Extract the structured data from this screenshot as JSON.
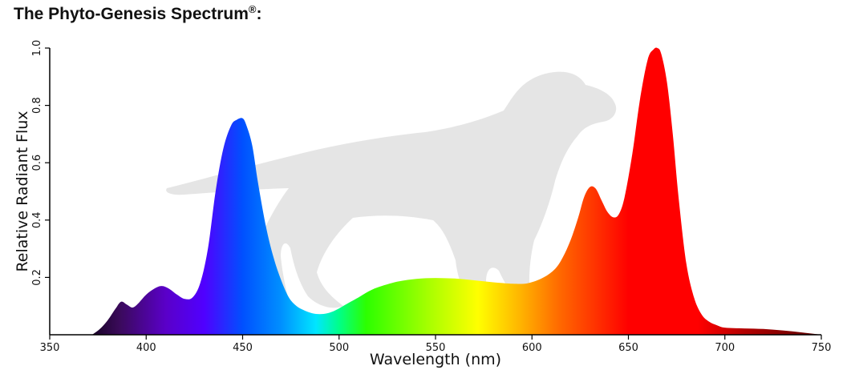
{
  "header": {
    "title": "The Phyto-Genesis Spectrum",
    "trademark": "®",
    "suffix": ":"
  },
  "chart_data": {
    "type": "area",
    "title": "The Phyto-Genesis Spectrum®:",
    "xlabel": "Wavelength (nm)",
    "ylabel": "Relative Radiant Flux",
    "xlim": [
      350,
      750
    ],
    "ylim": [
      0,
      1.0
    ],
    "x_ticks": [
      350,
      400,
      450,
      500,
      550,
      600,
      650,
      700,
      750
    ],
    "x_tick_labels": [
      "350",
      "400",
      "450",
      "500",
      "550",
      "600",
      "650",
      "700",
      "750"
    ],
    "y_ticks": [
      0.2,
      0.4,
      0.6,
      0.8,
      1.0
    ],
    "y_tick_labels": [
      "0.2",
      "0.4",
      "0.6",
      "0.8",
      "1.0"
    ],
    "grid": false,
    "fill": "wavelength-colored gradient",
    "series": [
      {
        "x": [
          372,
          376,
          380,
          384,
          387,
          390,
          393,
          396,
          400,
          404,
          408,
          412,
          416,
          420,
          424,
          428,
          432,
          436,
          440,
          444,
          447,
          450,
          452,
          455,
          458,
          462,
          466,
          470,
          474,
          478,
          482,
          486,
          490,
          494,
          498,
          502,
          506,
          510,
          515,
          520,
          530,
          540,
          550,
          560,
          570,
          580,
          590,
          598,
          606,
          612,
          616,
          620,
          624,
          627,
          630,
          633,
          636,
          639,
          642,
          645,
          648,
          652,
          656,
          660,
          663,
          665,
          667,
          670,
          673,
          676,
          680,
          684,
          688,
          692,
          696,
          700,
          710,
          720,
          730,
          740,
          750
        ],
        "y": [
          0.0,
          0.02,
          0.05,
          0.09,
          0.115,
          0.105,
          0.095,
          0.11,
          0.14,
          0.16,
          0.17,
          0.16,
          0.14,
          0.125,
          0.13,
          0.18,
          0.3,
          0.5,
          0.65,
          0.73,
          0.75,
          0.755,
          0.73,
          0.66,
          0.53,
          0.38,
          0.27,
          0.19,
          0.13,
          0.1,
          0.085,
          0.075,
          0.072,
          0.075,
          0.085,
          0.1,
          0.115,
          0.13,
          0.15,
          0.165,
          0.185,
          0.195,
          0.198,
          0.196,
          0.19,
          0.183,
          0.178,
          0.18,
          0.2,
          0.23,
          0.27,
          0.33,
          0.41,
          0.48,
          0.515,
          0.51,
          0.47,
          0.43,
          0.41,
          0.42,
          0.48,
          0.63,
          0.82,
          0.96,
          0.995,
          1.0,
          0.98,
          0.88,
          0.7,
          0.48,
          0.25,
          0.13,
          0.07,
          0.045,
          0.033,
          0.025,
          0.022,
          0.02,
          0.015,
          0.008,
          0.0
        ]
      }
    ],
    "watermark": "dog silhouette"
  }
}
